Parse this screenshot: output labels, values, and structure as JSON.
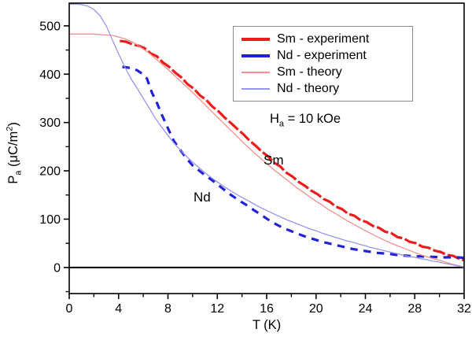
{
  "figure": {
    "background": "#ffffff",
    "axis_color": "#000000"
  },
  "ylabel_parts": {
    "p": "P",
    "sub": "a",
    "mid": " (μC/m",
    "sup": "2",
    "end": ")"
  },
  "annotations": {
    "field": {
      "h": "H",
      "sub": "a",
      "rest": " = 10 kOe"
    },
    "sm_label": "Sm",
    "nd_label": "Nd"
  },
  "chart_data": {
    "type": "line",
    "title": "",
    "xlabel": "T (K)",
    "ylabel": "Pa (uC/m2)",
    "xlim": [
      0,
      32
    ],
    "ylim": [
      -54,
      547
    ],
    "x_ticks": [
      0,
      4,
      8,
      12,
      16,
      20,
      24,
      28,
      32
    ],
    "x_minor_ticks": [
      2,
      6,
      10,
      14,
      18,
      22,
      26,
      30
    ],
    "y_ticks": [
      0,
      100,
      200,
      300,
      400,
      500
    ],
    "y_minor_ticks": [
      -50,
      50,
      150,
      250,
      350,
      450
    ],
    "grid": false,
    "legend_position": "upper-right",
    "zero_line": true,
    "series": [
      {
        "id": "sm-experiment",
        "name": "Sm - experiment",
        "color": "#ee1b1b",
        "width": 3.2,
        "dash": "16 3.5",
        "legend_sample_height": 4,
        "points": [
          [
            4.1,
            469
          ],
          [
            4.6,
            467
          ],
          [
            5.1,
            462
          ],
          [
            5.6,
            459
          ],
          [
            6.1,
            454
          ],
          [
            6.6,
            443
          ],
          [
            7.1,
            437
          ],
          [
            7.6,
            424
          ],
          [
            8.1,
            415
          ],
          [
            8.6,
            403
          ],
          [
            9.1,
            393
          ],
          [
            9.6,
            379
          ],
          [
            10.1,
            370
          ],
          [
            10.6,
            356
          ],
          [
            11.1,
            347
          ],
          [
            11.6,
            333
          ],
          [
            12.1,
            323
          ],
          [
            12.6,
            310
          ],
          [
            13.1,
            299
          ],
          [
            13.6,
            287
          ],
          [
            14.1,
            276
          ],
          [
            14.6,
            263
          ],
          [
            15.1,
            252
          ],
          [
            15.6,
            240
          ],
          [
            16.1,
            230
          ],
          [
            16.6,
            217
          ],
          [
            17.1,
            209
          ],
          [
            17.6,
            196
          ],
          [
            18.1,
            188
          ],
          [
            18.6,
            177
          ],
          [
            19.1,
            169
          ],
          [
            19.6,
            159
          ],
          [
            20.1,
            152
          ],
          [
            20.6,
            142
          ],
          [
            21.1,
            136
          ],
          [
            21.6,
            126
          ],
          [
            22.1,
            121
          ],
          [
            22.6,
            111
          ],
          [
            23.1,
            107
          ],
          [
            23.6,
            98
          ],
          [
            24.1,
            94
          ],
          [
            24.6,
            86
          ],
          [
            25.1,
            82
          ],
          [
            25.6,
            74
          ],
          [
            26.1,
            71
          ],
          [
            26.6,
            63
          ],
          [
            27.1,
            60
          ],
          [
            27.6,
            53
          ],
          [
            28.1,
            50
          ],
          [
            28.6,
            43
          ],
          [
            29.1,
            41
          ],
          [
            29.6,
            35
          ],
          [
            30.1,
            32
          ],
          [
            30.6,
            26
          ],
          [
            31.1,
            24
          ],
          [
            31.6,
            18
          ],
          [
            32,
            15
          ]
        ]
      },
      {
        "id": "nd-experiment",
        "name": "Nd - experiment",
        "color": "#2323d6",
        "width": 3.2,
        "dash": "9.5 7.5",
        "legend_sample_height": 4,
        "points": [
          [
            4.3,
            415
          ],
          [
            4.7,
            414
          ],
          [
            5.1,
            412
          ],
          [
            5.5,
            408
          ],
          [
            5.9,
            401
          ],
          [
            6.3,
            391
          ],
          [
            6.7,
            362
          ],
          [
            7.1,
            341
          ],
          [
            7.5,
            316
          ],
          [
            8,
            288
          ],
          [
            8.5,
            261
          ],
          [
            9,
            243
          ],
          [
            9.5,
            226
          ],
          [
            10,
            211
          ],
          [
            10.5,
            201
          ],
          [
            11,
            191
          ],
          [
            11.5,
            182
          ],
          [
            12,
            172
          ],
          [
            12.5,
            162
          ],
          [
            13,
            152
          ],
          [
            13.5,
            143
          ],
          [
            14,
            135
          ],
          [
            14.5,
            127
          ],
          [
            15,
            118
          ],
          [
            15.5,
            110
          ],
          [
            16,
            101
          ],
          [
            16.5,
            93
          ],
          [
            17,
            86
          ],
          [
            17.5,
            80
          ],
          [
            18,
            75
          ],
          [
            18.5,
            70
          ],
          [
            19,
            65
          ],
          [
            19.5,
            61
          ],
          [
            20,
            57
          ],
          [
            20.5,
            53
          ],
          [
            21,
            50
          ],
          [
            21.5,
            47
          ],
          [
            22,
            44
          ],
          [
            22.5,
            41
          ],
          [
            23,
            38
          ],
          [
            23.5,
            36
          ],
          [
            24,
            34
          ],
          [
            24.5,
            32
          ],
          [
            25,
            30
          ],
          [
            25.5,
            29
          ],
          [
            26,
            28
          ],
          [
            26.5,
            26
          ],
          [
            27,
            25
          ],
          [
            27.5,
            24
          ],
          [
            28,
            23
          ],
          [
            28.5,
            23
          ],
          [
            29,
            22
          ],
          [
            29.5,
            22
          ],
          [
            30,
            21
          ],
          [
            30.5,
            21
          ],
          [
            31,
            21
          ],
          [
            31.5,
            21
          ],
          [
            32,
            20
          ]
        ]
      },
      {
        "id": "sm-theory",
        "name": "Sm - theory",
        "color": "#f5908d",
        "width": 1.3,
        "dash": null,
        "legend_sample_height": 2,
        "points": [
          [
            0,
            483
          ],
          [
            1,
            483
          ],
          [
            2,
            483
          ],
          [
            3,
            481
          ],
          [
            3.5,
            480
          ],
          [
            4,
            477
          ],
          [
            4.5,
            473
          ],
          [
            5,
            468
          ],
          [
            5.5,
            461
          ],
          [
            6,
            452
          ],
          [
            6.5,
            443
          ],
          [
            7,
            432
          ],
          [
            7.5,
            421
          ],
          [
            8,
            410
          ],
          [
            8.5,
            398
          ],
          [
            9,
            386
          ],
          [
            9.5,
            374
          ],
          [
            10,
            362
          ],
          [
            10.5,
            350
          ],
          [
            11,
            337
          ],
          [
            11.5,
            324
          ],
          [
            12,
            311
          ],
          [
            12.5,
            299
          ],
          [
            13,
            286
          ],
          [
            13.5,
            274
          ],
          [
            14,
            261
          ],
          [
            14.5,
            249
          ],
          [
            15,
            237
          ],
          [
            15.5,
            226
          ],
          [
            16,
            215
          ],
          [
            16.5,
            204
          ],
          [
            17,
            194
          ],
          [
            17.5,
            184
          ],
          [
            18,
            174
          ],
          [
            18.5,
            164
          ],
          [
            19,
            155
          ],
          [
            19.5,
            146
          ],
          [
            20,
            137
          ],
          [
            20.5,
            129
          ],
          [
            21,
            120
          ],
          [
            21.5,
            113
          ],
          [
            22,
            105
          ],
          [
            22.5,
            97
          ],
          [
            23,
            90
          ],
          [
            23.5,
            83
          ],
          [
            24,
            76
          ],
          [
            24.5,
            70
          ],
          [
            25,
            63
          ],
          [
            25.5,
            57
          ],
          [
            26,
            51
          ],
          [
            26.5,
            46
          ],
          [
            27,
            41
          ],
          [
            27.5,
            36
          ],
          [
            28,
            31
          ],
          [
            28.5,
            26
          ],
          [
            29,
            22
          ],
          [
            29.5,
            18
          ],
          [
            30,
            15
          ],
          [
            30.5,
            11
          ],
          [
            31,
            7
          ],
          [
            31.5,
            4
          ],
          [
            32,
            1
          ]
        ]
      },
      {
        "id": "nd-theory",
        "name": "Nd - theory",
        "color": "#9595ee",
        "width": 1.3,
        "dash": null,
        "legend_sample_height": 2,
        "points": [
          [
            0,
            545
          ],
          [
            0.5,
            545
          ],
          [
            1,
            544
          ],
          [
            1.5,
            541
          ],
          [
            2,
            534
          ],
          [
            2.5,
            521
          ],
          [
            3,
            500
          ],
          [
            3.5,
            471
          ],
          [
            4,
            442
          ],
          [
            4.5,
            415
          ],
          [
            5,
            391
          ],
          [
            5.5,
            371
          ],
          [
            6,
            350
          ],
          [
            6.5,
            329
          ],
          [
            7,
            308
          ],
          [
            7.5,
            290
          ],
          [
            8,
            273
          ],
          [
            8.5,
            257
          ],
          [
            9,
            243
          ],
          [
            9.5,
            230
          ],
          [
            10,
            218
          ],
          [
            10.5,
            207
          ],
          [
            11,
            196
          ],
          [
            11.5,
            186
          ],
          [
            12,
            177
          ],
          [
            12.5,
            168
          ],
          [
            13,
            160
          ],
          [
            13.5,
            152
          ],
          [
            14,
            145
          ],
          [
            14.5,
            138
          ],
          [
            15,
            131
          ],
          [
            15.5,
            124
          ],
          [
            16,
            118
          ],
          [
            16.5,
            112
          ],
          [
            17,
            106
          ],
          [
            17.5,
            100
          ],
          [
            18,
            95
          ],
          [
            18.5,
            90
          ],
          [
            19,
            85
          ],
          [
            19.5,
            80
          ],
          [
            20,
            76
          ],
          [
            20.5,
            71
          ],
          [
            21,
            67
          ],
          [
            21.5,
            63
          ],
          [
            22,
            59
          ],
          [
            22.5,
            55
          ],
          [
            23,
            52
          ],
          [
            23.5,
            48
          ],
          [
            24,
            45
          ],
          [
            24.5,
            41
          ],
          [
            25,
            38
          ],
          [
            25.5,
            35
          ],
          [
            26,
            32
          ],
          [
            26.5,
            29
          ],
          [
            27,
            26
          ],
          [
            27.5,
            23
          ],
          [
            28,
            21
          ],
          [
            28.5,
            18
          ],
          [
            29,
            16
          ],
          [
            29.5,
            13
          ],
          [
            30,
            11
          ],
          [
            30.5,
            8
          ],
          [
            31,
            6
          ],
          [
            31.5,
            3
          ],
          [
            32,
            1
          ]
        ]
      }
    ]
  }
}
